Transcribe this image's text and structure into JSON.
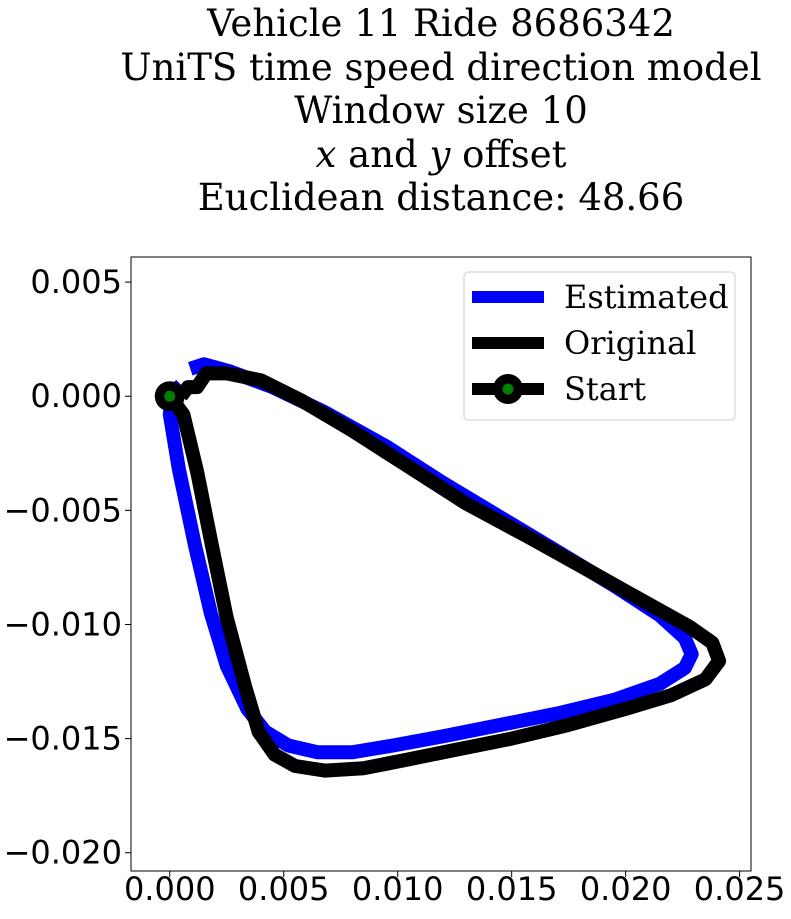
{
  "chart_data": {
    "type": "line",
    "title_lines": [
      "Vehicle 11 Ride 8686342",
      "UniTS time speed direction model",
      "Window size 10"
    ],
    "title_offset_line": {
      "x_var": "x",
      "and_text": " and ",
      "y_var": "y",
      "rest_text": " offset"
    },
    "title_distance": "Euclidean distance: 48.66",
    "xlabel": "",
    "ylabel": "",
    "xlim": [
      -0.0017,
      0.0255
    ],
    "ylim": [
      -0.0208,
      0.0061
    ],
    "xticks": [
      0.0,
      0.005,
      0.01,
      0.015,
      0.02,
      0.025
    ],
    "xtick_labels": [
      "0.000",
      "0.005",
      "0.010",
      "0.015",
      "0.020",
      "0.025"
    ],
    "yticks": [
      0.005,
      0.0,
      -0.005,
      -0.01,
      -0.015,
      -0.02
    ],
    "ytick_labels": [
      "0.005",
      "0.000",
      "−0.005",
      "−0.010",
      "−0.015",
      "−0.020"
    ],
    "grid": false,
    "legend_position": "top-right",
    "series": [
      {
        "name": "Estimated",
        "color": "#0000ff",
        "points": [
          [
            0.0009,
            0.0012
          ],
          [
            0.0015,
            0.0014
          ],
          [
            0.0026,
            0.0011
          ],
          [
            0.0045,
            0.0004
          ],
          [
            0.0068,
            -0.0007
          ],
          [
            0.0095,
            -0.0022
          ],
          [
            0.012,
            -0.0038
          ],
          [
            0.0145,
            -0.0053
          ],
          [
            0.017,
            -0.0068
          ],
          [
            0.0195,
            -0.0083
          ],
          [
            0.0215,
            -0.0096
          ],
          [
            0.0226,
            -0.0106
          ],
          [
            0.0229,
            -0.0113
          ],
          [
            0.0226,
            -0.0119
          ],
          [
            0.0215,
            -0.0126
          ],
          [
            0.0195,
            -0.0133
          ],
          [
            0.017,
            -0.0139
          ],
          [
            0.0145,
            -0.0144
          ],
          [
            0.012,
            -0.0149
          ],
          [
            0.0098,
            -0.0153
          ],
          [
            0.008,
            -0.0156
          ],
          [
            0.0065,
            -0.0156
          ],
          [
            0.0052,
            -0.0153
          ],
          [
            0.0042,
            -0.0147
          ],
          [
            0.0034,
            -0.0137
          ],
          [
            0.0025,
            -0.0118
          ],
          [
            0.0018,
            -0.0095
          ],
          [
            0.0011,
            -0.0065
          ],
          [
            0.0004,
            -0.0032
          ],
          [
            0.0,
            -0.0008
          ],
          [
            0.0001,
            0.0001
          ],
          [
            0.0005,
            0.0005
          ]
        ]
      },
      {
        "name": "Original",
        "color": "#000000",
        "points": [
          [
            0.0,
            0.0
          ],
          [
            0.0006,
            -0.0008
          ],
          [
            0.0012,
            -0.0033
          ],
          [
            0.0018,
            -0.0063
          ],
          [
            0.0025,
            -0.0097
          ],
          [
            0.0033,
            -0.0127
          ],
          [
            0.0039,
            -0.0147
          ],
          [
            0.0046,
            -0.0157
          ],
          [
            0.0055,
            -0.0162
          ],
          [
            0.0068,
            -0.0164
          ],
          [
            0.0085,
            -0.0163
          ],
          [
            0.0105,
            -0.0159
          ],
          [
            0.0125,
            -0.0155
          ],
          [
            0.015,
            -0.015
          ],
          [
            0.0175,
            -0.0144
          ],
          [
            0.02,
            -0.0137
          ],
          [
            0.022,
            -0.0131
          ],
          [
            0.0235,
            -0.0124
          ],
          [
            0.0241,
            -0.0116
          ],
          [
            0.0238,
            -0.0108
          ],
          [
            0.0228,
            -0.0101
          ],
          [
            0.021,
            -0.0091
          ],
          [
            0.0185,
            -0.0077
          ],
          [
            0.0158,
            -0.0062
          ],
          [
            0.013,
            -0.0047
          ],
          [
            0.0105,
            -0.0031
          ],
          [
            0.008,
            -0.0015
          ],
          [
            0.0058,
            -0.0002
          ],
          [
            0.004,
            0.0007
          ],
          [
            0.0025,
            0.001
          ],
          [
            0.0016,
            0.001
          ],
          [
            0.0012,
            0.0004
          ],
          [
            0.0008,
            0.0004
          ],
          [
            0.0005,
            0.0
          ]
        ]
      }
    ],
    "start_point": {
      "name": "Start",
      "x": 0.0,
      "y": 0.0,
      "outer_color": "#000000",
      "inner_color": "#008000"
    }
  }
}
